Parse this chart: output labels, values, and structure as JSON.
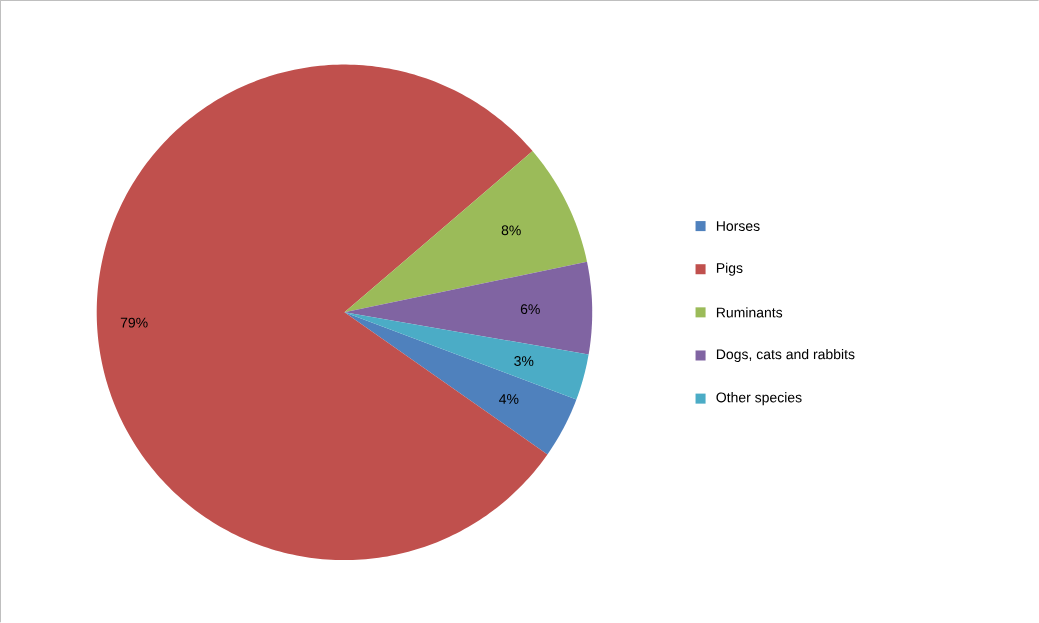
{
  "chart_data": {
    "type": "pie",
    "categories": [
      "Horses",
      "Pigs",
      "Ruminants",
      "Dogs, cats and rabbits",
      "Other species"
    ],
    "values": [
      4,
      79,
      8,
      6,
      3
    ],
    "colors": [
      "#4f81bd",
      "#c0504d",
      "#9bbb59",
      "#8064a2",
      "#4bacc6"
    ],
    "value_labels": [
      "4%",
      "79%",
      "8%",
      "6%",
      "3%"
    ],
    "legend": "right"
  }
}
